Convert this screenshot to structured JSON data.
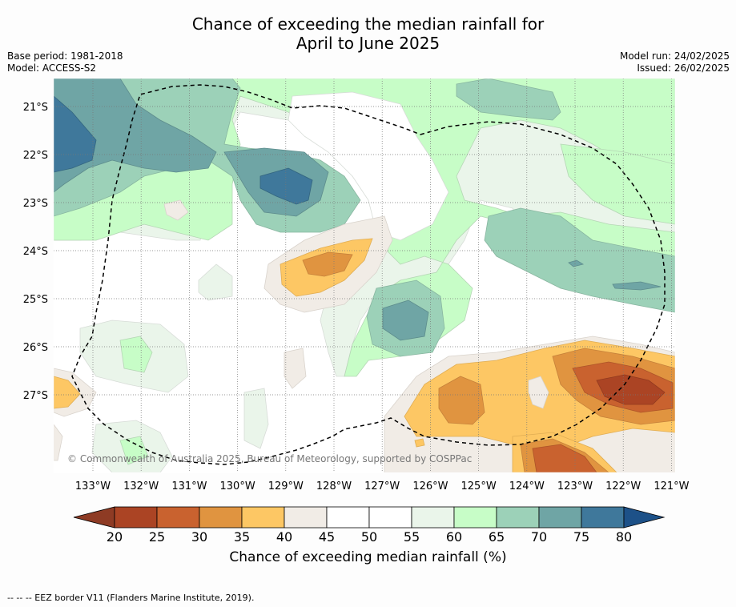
{
  "title": {
    "line1": "Chance of exceeding the median rainfall for",
    "line2": "April to June 2025"
  },
  "meta_left": {
    "base_period": "Base period: 1981-2018",
    "model": "Model: ACCESS-S2"
  },
  "meta_right": {
    "model_run": "Model run: 24/02/2025",
    "issued": "Issued: 26/02/2025"
  },
  "copyright": "© Commonwealth of Australia 2025, Bureau of Meteorology, supported by COSPPac",
  "lat_labels": [
    "21°S",
    "22°S",
    "23°S",
    "24°S",
    "25°S",
    "26°S",
    "27°S"
  ],
  "lon_labels": [
    "133°W",
    "132°W",
    "131°W",
    "130°W",
    "129°W",
    "128°W",
    "127°W",
    "126°W",
    "125°W",
    "124°W",
    "123°W",
    "122°W",
    "121°W"
  ],
  "colorbar": {
    "ticks": [
      "20",
      "25",
      "30",
      "35",
      "40",
      "45",
      "50",
      "55",
      "60",
      "65",
      "70",
      "75",
      "80"
    ],
    "colors": [
      "#ab4424",
      "#c9622f",
      "#e09440",
      "#fdc764",
      "#f1ece6",
      "#ffffff",
      "#ffffff",
      "#eaf5ea",
      "#c7fdc7",
      "#9cd1b8",
      "#6fa5a5",
      "#3f789b"
    ],
    "under_color": "#8e3b24",
    "over_color": "#1d5188",
    "label": "Chance of exceeding median rainfall (%)"
  },
  "footnote": "--  --  -- EEZ border V11 (Flanders Marine Institute, 2019)."
}
